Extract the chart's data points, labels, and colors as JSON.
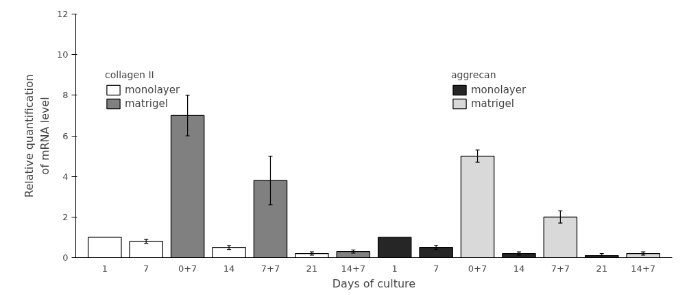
{
  "chart_data": {
    "type": "bar",
    "xlabel": "Days of culture",
    "ylabel": "Relative quantification\nof mRNA level",
    "annotations": [
      "collagen II",
      "aggrecan"
    ],
    "categories": [
      "1",
      "7",
      "0+7",
      "14",
      "7+7",
      "21",
      "14+7",
      "1",
      "7",
      "0+7",
      "14",
      "7+7",
      "21",
      "14+7"
    ],
    "series": [
      {
        "name": "monolayer",
        "color": "#ffffff",
        "values": [
          1,
          0.8,
          null,
          0.5,
          null,
          0.2,
          null,
          null,
          null,
          null,
          null,
          null,
          null,
          null
        ],
        "errors": [
          null,
          0.1,
          null,
          0.1,
          null,
          0.08,
          null,
          null,
          null,
          null,
          null,
          null,
          null,
          null
        ]
      },
      {
        "name": "matrigel",
        "color": "#808080",
        "values": [
          null,
          null,
          7,
          null,
          3.8,
          null,
          0.3,
          null,
          null,
          null,
          null,
          null,
          null,
          null
        ],
        "errors": [
          null,
          null,
          1,
          null,
          1.2,
          null,
          0.08,
          null,
          null,
          null,
          null,
          null,
          null,
          null
        ]
      },
      {
        "name": "monolayer",
        "color": "#262626",
        "values": [
          null,
          null,
          null,
          null,
          null,
          null,
          null,
          1,
          0.5,
          null,
          0.2,
          null,
          0.1,
          null
        ],
        "errors": [
          null,
          null,
          null,
          null,
          null,
          null,
          null,
          null,
          0.1,
          null,
          0.08,
          null,
          [
            0.1,
            0.2
          ],
          null
        ]
      },
      {
        "name": "matrigel",
        "color": "#d9d9d9",
        "values": [
          null,
          null,
          null,
          null,
          null,
          null,
          null,
          null,
          null,
          5,
          null,
          2,
          null,
          0.2
        ],
        "errors": [
          null,
          null,
          null,
          null,
          null,
          null,
          null,
          null,
          null,
          0.3,
          null,
          0.3,
          null,
          0.08
        ]
      }
    ],
    "ylim": [
      0,
      12
    ],
    "yticks": [
      0,
      2,
      4,
      6,
      8,
      10,
      12
    ],
    "grid": false,
    "legend": "top"
  }
}
